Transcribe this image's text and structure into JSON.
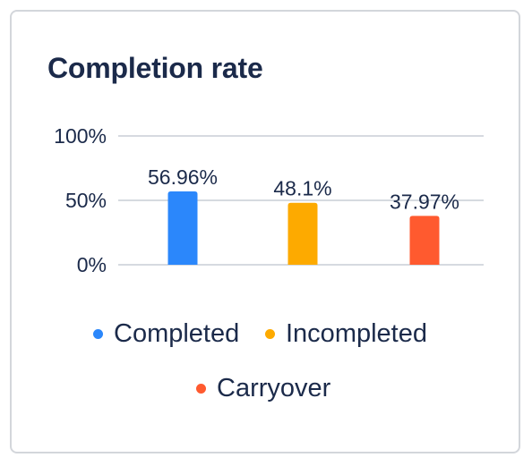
{
  "card": {
    "title": "Completion rate"
  },
  "chart_data": {
    "type": "bar",
    "title": "Completion rate",
    "categories": [
      "Completed",
      "Incompleted",
      "Carryover"
    ],
    "values": [
      56.96,
      48.1,
      37.97
    ],
    "value_labels": [
      "56.96%",
      "48.1%",
      "37.97%"
    ],
    "colors": [
      "#2b87fb",
      "#fdaa00",
      "#ff5a2f"
    ],
    "y_ticks": [
      "100%",
      "50%",
      "0%"
    ],
    "ylim": [
      0,
      100
    ],
    "grid": true,
    "legend": "bottom"
  },
  "legend": {
    "items": [
      {
        "label": "Completed",
        "color": "#2b87fb"
      },
      {
        "label": "Incompleted",
        "color": "#fdaa00"
      },
      {
        "label": "Carryover",
        "color": "#ff5a2f"
      }
    ]
  }
}
